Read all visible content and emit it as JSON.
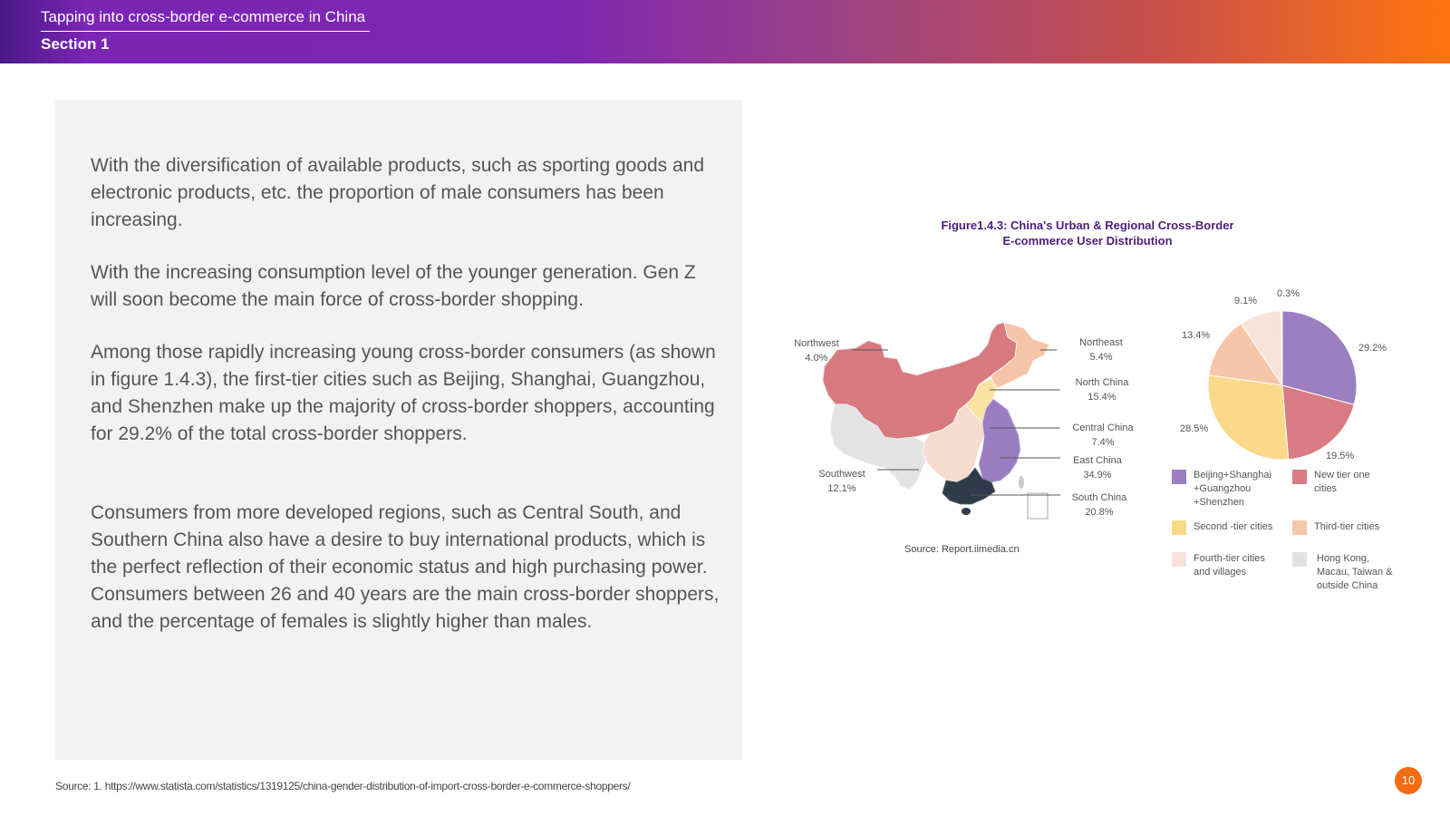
{
  "header": {
    "title": "Tapping into cross-border e-commerce in China",
    "section": "Section 1"
  },
  "body": {
    "paragraphs": [
      "With the diversification of available products, such as sporting goods and electronic products, etc. the proportion of male consumers has been increasing.",
      "With the increasing consumption level of the younger generation. Gen Z will soon become the main force of cross-border shopping.",
      "Among those rapidly increasing young cross-border consumers (as shown in figure 1.4.3), the first-tier cities such as Beijing, Shanghai, Guangzhou, and Shenzhen make up the majority of cross-border shoppers, accounting for 29.2% of the total cross-border shoppers.",
      "Consumers from more developed regions, such as Central South, and Southern China also have a desire to buy international products, which is the perfect reflection of their economic status and high purchasing power. Consumers between 26 and 40 years are the main cross-border shoppers, and the percentage of females is slightly higher than males."
    ]
  },
  "figure": {
    "title_line1": "Figure1.4.3: China's Urban & Regional Cross-Border",
    "title_line2": "E-commerce User Distribution",
    "map_source": "Source: Report.iimedia.cn"
  },
  "map_regions": [
    {
      "name": "Northwest",
      "value": "4.0%"
    },
    {
      "name": "Northeast",
      "value": "5.4%"
    },
    {
      "name": "North China",
      "value": "15.4%"
    },
    {
      "name": "Central China",
      "value": "7.4%"
    },
    {
      "name": "East China",
      "value": "34.9%"
    },
    {
      "name": "Southwest",
      "value": "12.1%"
    },
    {
      "name": "South China",
      "value": "20.8%"
    }
  ],
  "chart_data": {
    "type": "pie",
    "slices": [
      {
        "label": "Beijing+Shanghai +Guangzhou +Shenzhen",
        "value": 29.2,
        "value_label": "29.2%",
        "color": "#9b7fc0"
      },
      {
        "label": "New tier one cities",
        "value": 19.5,
        "value_label": "19.5%",
        "color": "#d97b82"
      },
      {
        "label": "Second -tier cities",
        "value": 28.5,
        "value_label": "28.5%",
        "color": "#fbd98a"
      },
      {
        "label": "Third-tier cities",
        "value": 13.4,
        "value_label": "13.4%",
        "color": "#f6c6a8"
      },
      {
        "label": "Fourth-tier cities and villages",
        "value": 9.1,
        "value_label": "9.1%",
        "color": "#f8e3da"
      },
      {
        "label": "Hong Kong, Macau, Taiwan & outside China",
        "value": 0.3,
        "value_label": "0.3%",
        "color": "#e2e2e2"
      }
    ],
    "legend": "bottom"
  },
  "footer": {
    "source": "Source: 1. https://www.statista.com/statistics/1319125/china-gender-distribution-of-import-cross-border-e-commerce-shoppers/",
    "page_number": "10"
  },
  "colors": {
    "header_start": "#4a1a86",
    "header_end": "#ff7410",
    "figure_title": "#4d1d7b",
    "page_badge": "#f36b12",
    "south_china": "#2f3a4b"
  }
}
